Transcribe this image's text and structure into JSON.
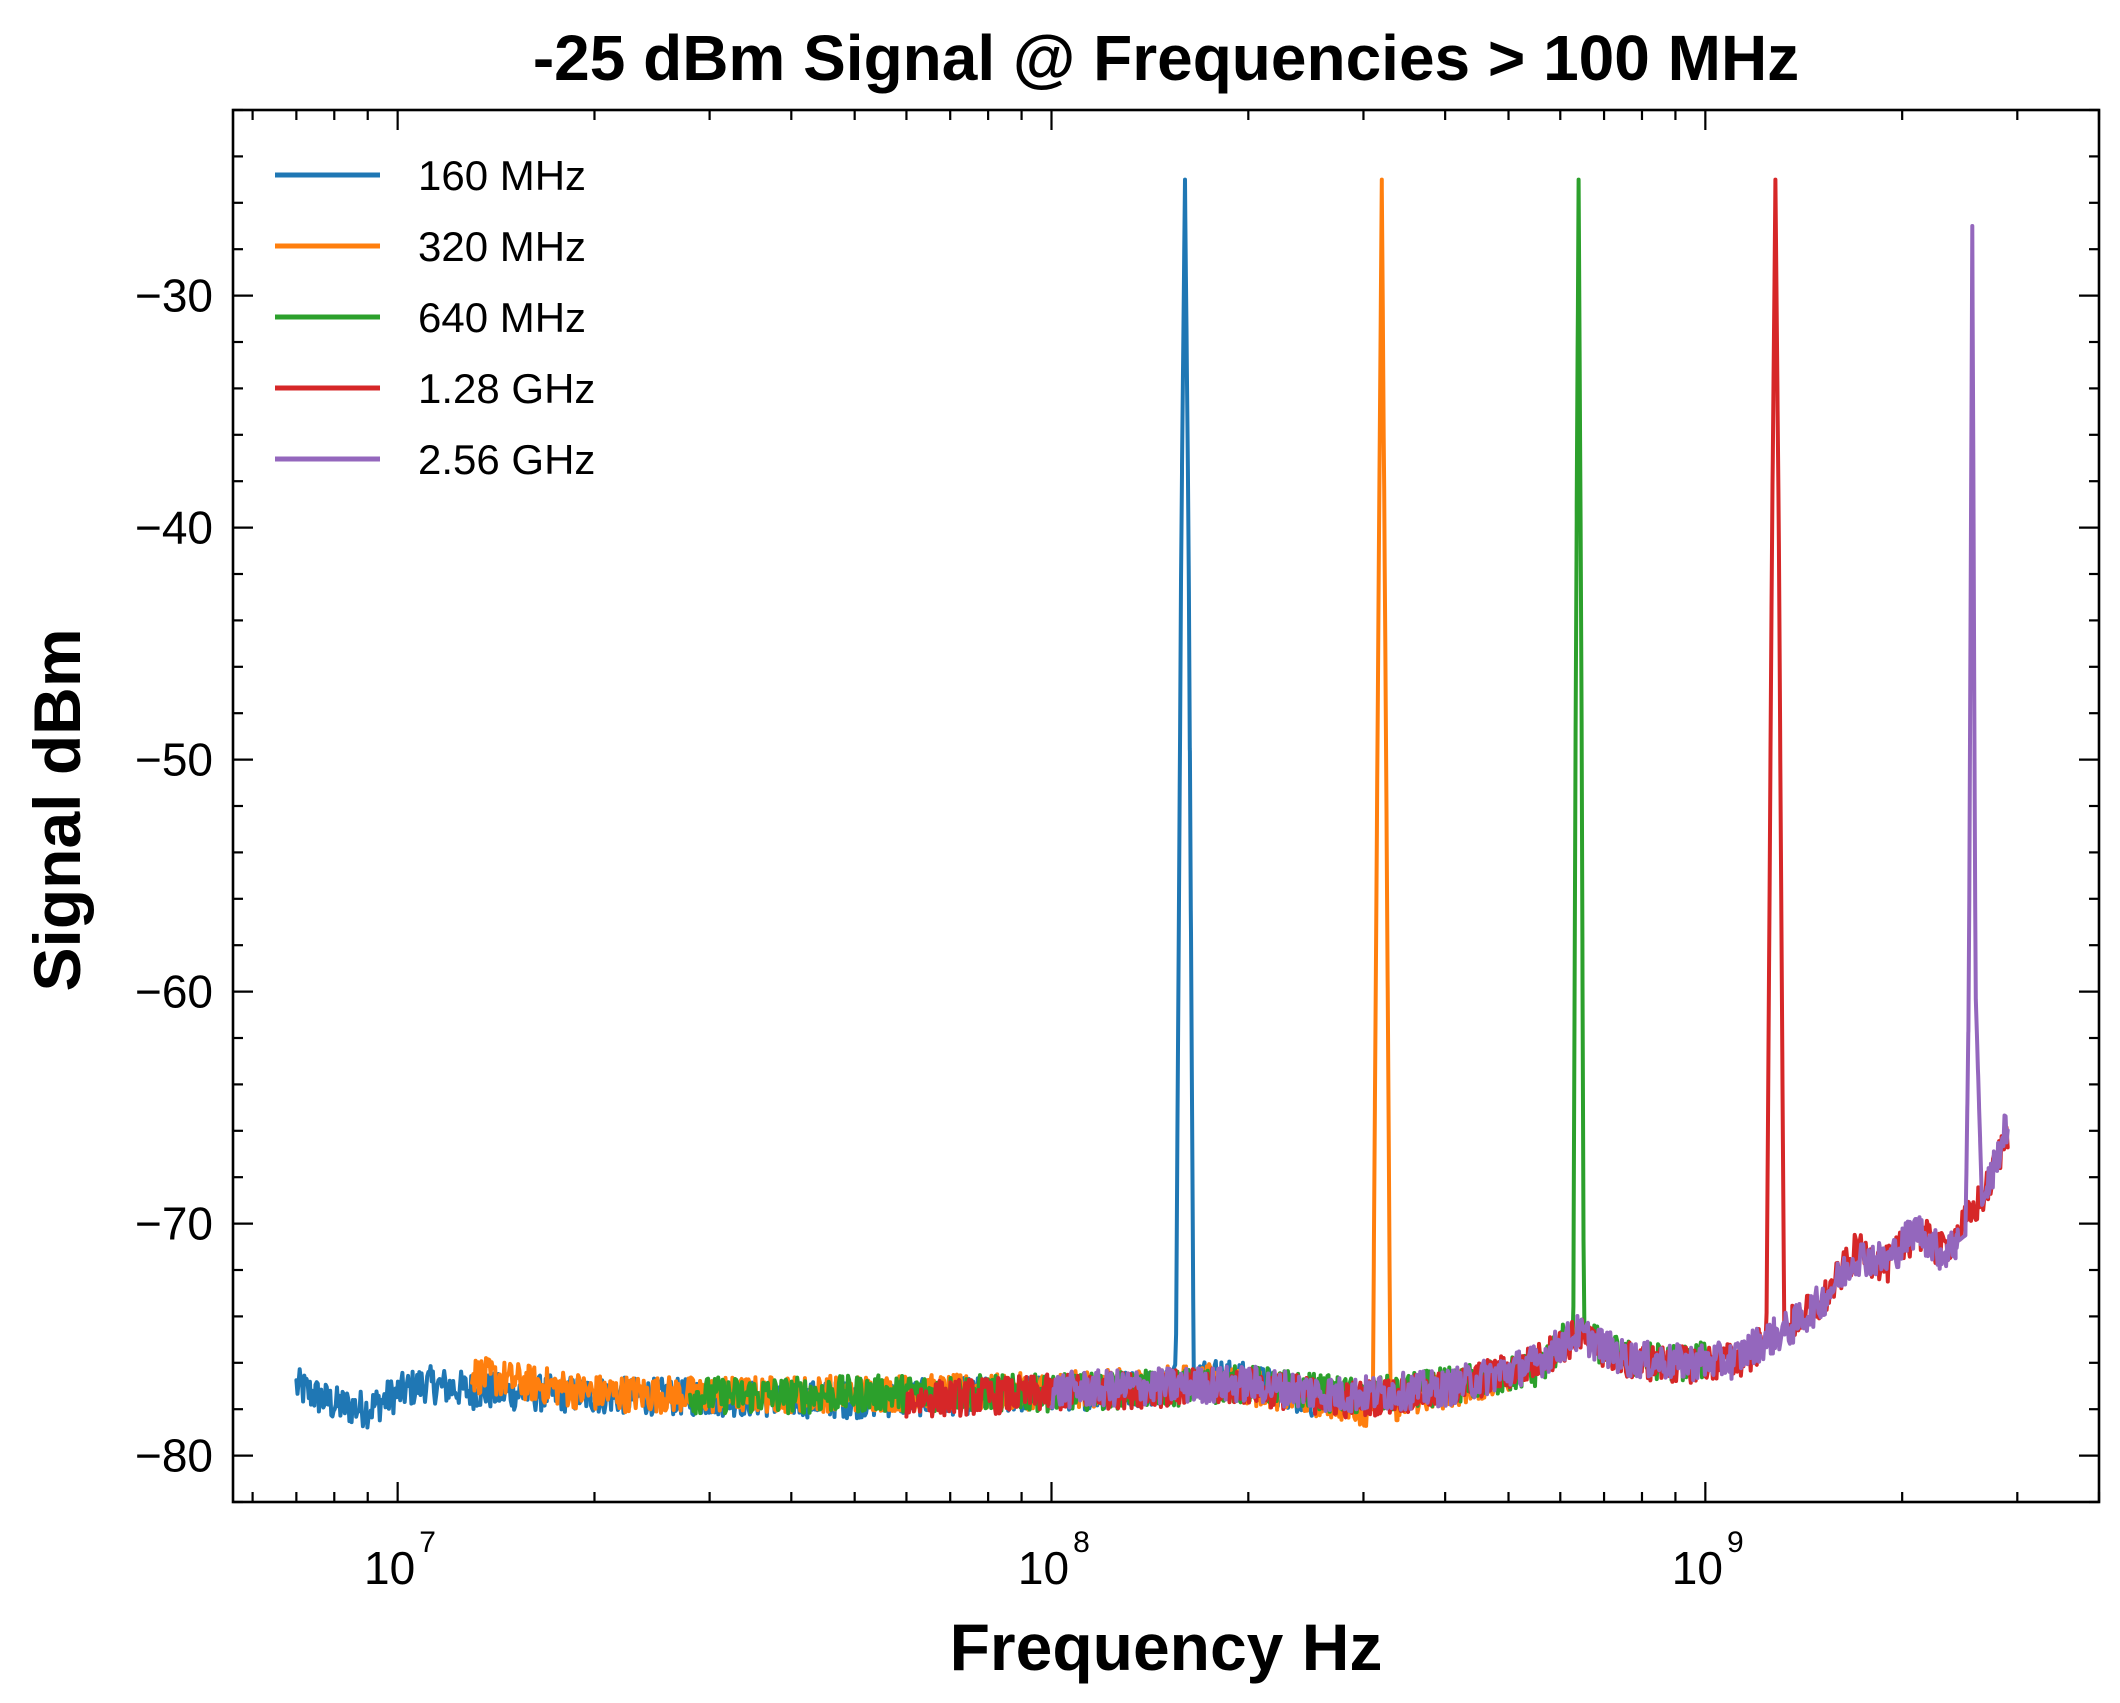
{
  "chart_data": {
    "type": "line",
    "title": "-25 dBm Signal @ Frequencies > 100 MHz",
    "xlabel": "Frequency Hz",
    "ylabel": "Signal dBm",
    "x_scale": "log",
    "xlim": [
      5600000,
      4000000000
    ],
    "ylim": [
      -82,
      -22
    ],
    "x_ticks": [
      {
        "value": 10000000,
        "base": "10",
        "exp": "7"
      },
      {
        "value": 100000000,
        "base": "10",
        "exp": "8"
      },
      {
        "value": 1000000000,
        "base": "10",
        "exp": "9"
      }
    ],
    "y_ticks": [
      {
        "value": -30,
        "label": "−30"
      },
      {
        "value": -40,
        "label": "−40"
      },
      {
        "value": -50,
        "label": "−50"
      },
      {
        "value": -60,
        "label": "−60"
      },
      {
        "value": -70,
        "label": "−70"
      },
      {
        "value": -80,
        "label": "−80"
      }
    ],
    "grid": false,
    "legend_position": "top-left",
    "series": [
      {
        "name": "160 MHz",
        "color": "#1f77b4",
        "x_range": [
          7000000,
          250000000
        ],
        "peak_x": 160000000,
        "peak_y": -25,
        "points": [
          [
            7000000,
            -77
          ],
          [
            8000000,
            -77.8
          ],
          [
            9000000,
            -78
          ],
          [
            10000000,
            -77.3
          ],
          [
            11000000,
            -76.9
          ],
          [
            13000000,
            -77.2
          ],
          [
            20000000,
            -77.4
          ],
          [
            30000000,
            -77.5
          ],
          [
            50000000,
            -77.6
          ],
          [
            80000000,
            -77.4
          ],
          [
            120000000,
            -77.2
          ],
          [
            150000000,
            -77
          ],
          [
            155000000,
            -76
          ],
          [
            158000000,
            -40
          ],
          [
            160000000,
            -25
          ],
          [
            162000000,
            -40
          ],
          [
            165000000,
            -76.5
          ],
          [
            180000000,
            -76.6
          ],
          [
            200000000,
            -76.8
          ],
          [
            230000000,
            -77.2
          ],
          [
            250000000,
            -77.6
          ]
        ]
      },
      {
        "name": "320 MHz",
        "color": "#ff7f0e",
        "x_range": [
          13000000,
          500000000
        ],
        "peak_x": 320000000,
        "peak_y": -25,
        "points": [
          [
            13000000,
            -76.5
          ],
          [
            20000000,
            -77.3
          ],
          [
            30000000,
            -77.4
          ],
          [
            50000000,
            -77.3
          ],
          [
            80000000,
            -77.3
          ],
          [
            120000000,
            -77.1
          ],
          [
            180000000,
            -76.8
          ],
          [
            250000000,
            -77.5
          ],
          [
            300000000,
            -77.9
          ],
          [
            310000000,
            -78
          ],
          [
            316000000,
            -45
          ],
          [
            320000000,
            -25
          ],
          [
            324000000,
            -45
          ],
          [
            330000000,
            -77.8
          ],
          [
            400000000,
            -77.2
          ],
          [
            500000000,
            -76.5
          ]
        ]
      },
      {
        "name": "640 MHz",
        "color": "#2ca02c",
        "x_range": [
          28000000,
          1000000000
        ],
        "peak_x": 640000000,
        "peak_y": -25,
        "points": [
          [
            28000000,
            -77.4
          ],
          [
            40000000,
            -77.4
          ],
          [
            60000000,
            -77.3
          ],
          [
            100000000,
            -77.3
          ],
          [
            150000000,
            -77.1
          ],
          [
            200000000,
            -76.9
          ],
          [
            300000000,
            -77.5
          ],
          [
            450000000,
            -76.8
          ],
          [
            560000000,
            -76.2
          ],
          [
            600000000,
            -75.2
          ],
          [
            628000000,
            -74.8
          ],
          [
            634000000,
            -45
          ],
          [
            640000000,
            -25
          ],
          [
            646000000,
            -45
          ],
          [
            652000000,
            -74.9
          ],
          [
            750000000,
            -75.8
          ],
          [
            900000000,
            -76
          ],
          [
            1000000000,
            -75.9
          ]
        ]
      },
      {
        "name": "1.28 GHz",
        "color": "#d62728",
        "x_range": [
          60000000,
          2900000000
        ],
        "peak_x": 1280000000,
        "peak_y": -25,
        "points": [
          [
            60000000,
            -77.6
          ],
          [
            100000000,
            -77.3
          ],
          [
            150000000,
            -77.1
          ],
          [
            200000000,
            -77
          ],
          [
            280000000,
            -77.6
          ],
          [
            400000000,
            -77.2
          ],
          [
            550000000,
            -76
          ],
          [
            640000000,
            -74.8
          ],
          [
            750000000,
            -75.9
          ],
          [
            900000000,
            -76.1
          ],
          [
            1050000000,
            -76
          ],
          [
            1150000000,
            -75.8
          ],
          [
            1240000000,
            -75
          ],
          [
            1265000000,
            -40
          ],
          [
            1280000000,
            -25
          ],
          [
            1295000000,
            -40
          ],
          [
            1320000000,
            -74.5
          ],
          [
            1500000000,
            -73.5
          ],
          [
            1700000000,
            -71.2
          ],
          [
            1900000000,
            -71.8
          ],
          [
            2100000000,
            -70.3
          ],
          [
            2300000000,
            -71.2
          ],
          [
            2500000000,
            -70
          ],
          [
            2700000000,
            -68.5
          ],
          [
            2900000000,
            -66
          ]
        ]
      },
      {
        "name": "2.56 GHz",
        "color": "#9467bd",
        "x_range": [
          100000000,
          2900000000
        ],
        "peak_x": 2560000000,
        "peak_y": -27,
        "points": [
          [
            100000000,
            -77.2
          ],
          [
            150000000,
            -77
          ],
          [
            200000000,
            -76.9
          ],
          [
            280000000,
            -77.4
          ],
          [
            400000000,
            -77.1
          ],
          [
            550000000,
            -76
          ],
          [
            640000000,
            -74.7
          ],
          [
            750000000,
            -75.8
          ],
          [
            900000000,
            -76
          ],
          [
            1100000000,
            -75.9
          ],
          [
            1200000000,
            -75.2
          ],
          [
            1350000000,
            -74.5
          ],
          [
            1500000000,
            -73.4
          ],
          [
            1700000000,
            -71.4
          ],
          [
            1900000000,
            -71.6
          ],
          [
            2100000000,
            -70.2
          ],
          [
            2300000000,
            -71.3
          ],
          [
            2500000000,
            -70.5
          ],
          [
            2530000000,
            -60
          ],
          [
            2560000000,
            -27
          ],
          [
            2590000000,
            -60
          ],
          [
            2650000000,
            -69.2
          ],
          [
            2800000000,
            -67
          ],
          [
            2900000000,
            -65.7
          ]
        ]
      }
    ]
  }
}
